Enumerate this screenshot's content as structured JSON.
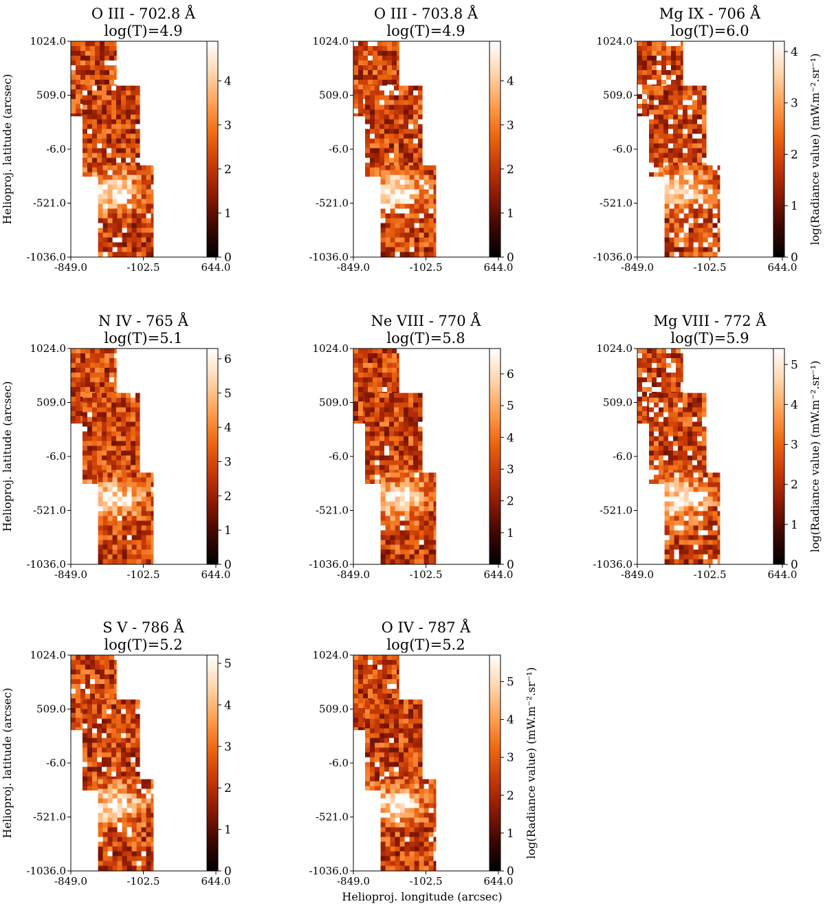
{
  "figure": {
    "y_axis_label": "Helioproj. latitude (arcsec)",
    "x_axis_label": "Helioproj. longitude (arcsec)",
    "colorbar_label": "log(Radiance value) (mW.m⁻².sr⁻¹)",
    "colormap": [
      "#000000",
      "#3d0800",
      "#8c1a02",
      "#c83a08",
      "#ee6a12",
      "#ffa256",
      "#ffd7b0",
      "#ffffff"
    ],
    "missing_color": "#ffffff"
  },
  "chart_data": [
    {
      "type": "heatmap",
      "title": "O III - 702.8 Å",
      "subtitle": "log(T)=4.9",
      "xlim": [
        -849.0,
        644.0
      ],
      "ylim": [
        -1036.0,
        1024.0
      ],
      "x_ticks": [
        "-849.0",
        "-102.5",
        "644.0"
      ],
      "y_ticks": [
        "1024.0",
        "509.0",
        "-6.0",
        "-521.0",
        "-1036.0"
      ],
      "colorbar_range": [
        0,
        4.9
      ],
      "colorbar_ticks": [
        0,
        1,
        2,
        3,
        4
      ],
      "missing_fraction": 0.06
    },
    {
      "type": "heatmap",
      "title": "O III - 703.8 Å",
      "subtitle": "log(T)=4.9",
      "xlim": [
        -849.0,
        644.0
      ],
      "ylim": [
        -1036.0,
        1024.0
      ],
      "x_ticks": [
        "-849.0",
        "-102.5",
        "644.0"
      ],
      "y_ticks": [
        "1024.0",
        "509.0",
        "-6.0",
        "-521.0",
        "-1036.0"
      ],
      "colorbar_range": [
        0,
        4.9
      ],
      "colorbar_ticks": [
        0,
        1,
        2,
        3,
        4
      ],
      "missing_fraction": 0.06
    },
    {
      "type": "heatmap",
      "title": "Mg IX - 706 Å",
      "subtitle": "log(T)=6.0",
      "xlim": [
        -849.0,
        644.0
      ],
      "ylim": [
        -1036.0,
        1024.0
      ],
      "x_ticks": [
        "-849.0",
        "-102.5",
        "644.0"
      ],
      "y_ticks": [
        "1024.0",
        "509.0",
        "-6.0",
        "-521.0",
        "-1036.0"
      ],
      "colorbar_range": [
        0,
        4.2
      ],
      "colorbar_ticks": [
        0,
        1,
        2,
        3,
        4
      ],
      "missing_fraction": 0.14
    },
    {
      "type": "heatmap",
      "title": "N IV - 765 Å",
      "subtitle": "log(T)=5.1",
      "xlim": [
        -849.0,
        644.0
      ],
      "ylim": [
        -1036.0,
        1024.0
      ],
      "x_ticks": [
        "-849.0",
        "-102.5",
        "644.0"
      ],
      "y_ticks": [
        "1024.0",
        "509.0",
        "-6.0",
        "-521.0",
        "-1036.0"
      ],
      "colorbar_range": [
        0,
        6.3
      ],
      "colorbar_ticks": [
        0,
        1,
        2,
        3,
        4,
        5,
        6
      ],
      "missing_fraction": 0.02
    },
    {
      "type": "heatmap",
      "title": "Ne VIII - 770 Å",
      "subtitle": "log(T)=5.8",
      "xlim": [
        -849.0,
        644.0
      ],
      "ylim": [
        -1036.0,
        1024.0
      ],
      "x_ticks": [
        "-849.0",
        "-102.5",
        "644.0"
      ],
      "y_ticks": [
        "1024.0",
        "509.0",
        "-6.0",
        "-521.0",
        "-1036.0"
      ],
      "colorbar_range": [
        0,
        6.8
      ],
      "colorbar_ticks": [
        0,
        1,
        2,
        3,
        4,
        5,
        6
      ],
      "missing_fraction": 0.03
    },
    {
      "type": "heatmap",
      "title": "Mg VIII - 772 Å",
      "subtitle": "log(T)=5.9",
      "xlim": [
        -849.0,
        644.0
      ],
      "ylim": [
        -1036.0,
        1024.0
      ],
      "x_ticks": [
        "-849.0",
        "-102.5",
        "644.0"
      ],
      "y_ticks": [
        "1024.0",
        "509.0",
        "-6.0",
        "-521.0",
        "-1036.0"
      ],
      "colorbar_range": [
        0,
        5.4
      ],
      "colorbar_ticks": [
        0,
        1,
        2,
        3,
        4,
        5
      ],
      "missing_fraction": 0.12
    },
    {
      "type": "heatmap",
      "title": "S V - 786 Å",
      "subtitle": "log(T)=5.2",
      "xlim": [
        -849.0,
        644.0
      ],
      "ylim": [
        -1036.0,
        1024.0
      ],
      "x_ticks": [
        "-849.0",
        "-102.5",
        "644.0"
      ],
      "y_ticks": [
        "1024.0",
        "509.0",
        "-6.0",
        "-521.0",
        "-1036.0"
      ],
      "colorbar_range": [
        0,
        5.2
      ],
      "colorbar_ticks": [
        0,
        1,
        2,
        3,
        4,
        5
      ],
      "missing_fraction": 0.06
    },
    {
      "type": "heatmap",
      "title": "O IV - 787 Å",
      "subtitle": "log(T)=5.2",
      "xlim": [
        -849.0,
        644.0
      ],
      "ylim": [
        -1036.0,
        1024.0
      ],
      "x_ticks": [
        "-849.0",
        "-102.5",
        "644.0"
      ],
      "y_ticks": [
        "1024.0",
        "509.0",
        "-6.0",
        "-521.0",
        "-1036.0"
      ],
      "colorbar_range": [
        0,
        5.7
      ],
      "colorbar_ticks": [
        0,
        1,
        2,
        3,
        4,
        5
      ],
      "missing_fraction": 0.05
    }
  ]
}
